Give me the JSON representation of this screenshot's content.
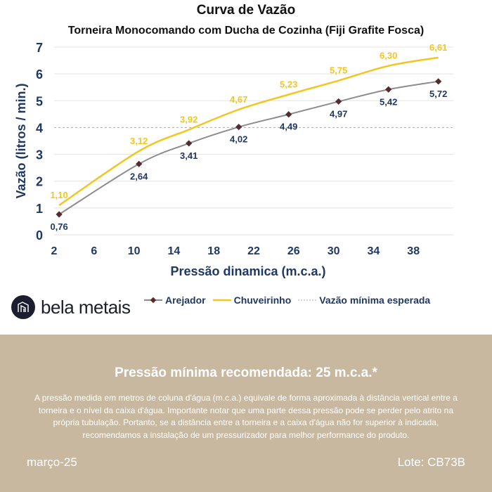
{
  "chart_data": {
    "type": "line",
    "title": "Curva de Vazão",
    "subtitle": "Torneira Monocomando com Ducha de Cozinha (Fiji Grafite Fosca)",
    "xlabel": "Pressão dinamica (m.c.a.)",
    "ylabel": "Vazão (litros / min.)",
    "xlim": [
      2,
      42
    ],
    "ylim": [
      0,
      7
    ],
    "xticks": [
      2,
      6,
      10,
      14,
      18,
      22,
      26,
      30,
      34,
      38
    ],
    "yticks": [
      0,
      1,
      2,
      3,
      4,
      5,
      6,
      7
    ],
    "grid": true,
    "legend_placement": "bottom",
    "x": [
      2.5,
      10.5,
      15.5,
      20.5,
      25.5,
      30.5,
      35.5,
      40.5
    ],
    "series": [
      {
        "name": "Arejador",
        "color": "#8c8c8c",
        "marker_color": "#5a2a2a",
        "values": [
          0.76,
          2.64,
          3.41,
          4.02,
          4.49,
          4.97,
          5.42,
          5.72
        ],
        "labels": [
          "0,76",
          "2,64",
          "3,41",
          "4,02",
          "4,49",
          "4,97",
          "5,42",
          "5,72"
        ],
        "label_color": "#1f3864"
      },
      {
        "name": "Chuveirinho",
        "color": "#f2c61f",
        "values": [
          1.1,
          3.12,
          3.92,
          4.67,
          5.23,
          5.75,
          6.3,
          6.61
        ],
        "labels": [
          "1,10",
          "3,12",
          "3,92",
          "4,67",
          "5,23",
          "5,75",
          "6,30",
          "6,61"
        ],
        "label_color": "#f2c61f"
      }
    ],
    "reference_line": {
      "name": "Vazão mínima esperada",
      "value": 4,
      "color": "#aaaaaa"
    }
  },
  "brand": {
    "name": "bela metais"
  },
  "footer": {
    "title": "Pressão mínima recomendada: 25 m.c.a.*",
    "text": "A pressão medida em metros de coluna d'água (m.c.a.) equivale de forma aproximada à distância vertical entre a torneira e o nível da caixa d'água. Importante notar que uma parte dessa pressão pode se perder pelo atrito na própria tubulação. Portanto, se a distância entre a torneira e a caixa d'água não for superior à indicada, recomendamos a instalação de um pressurizador para melhor performance do produto.",
    "date": "março-25",
    "lot": "Lote: CB73B"
  }
}
